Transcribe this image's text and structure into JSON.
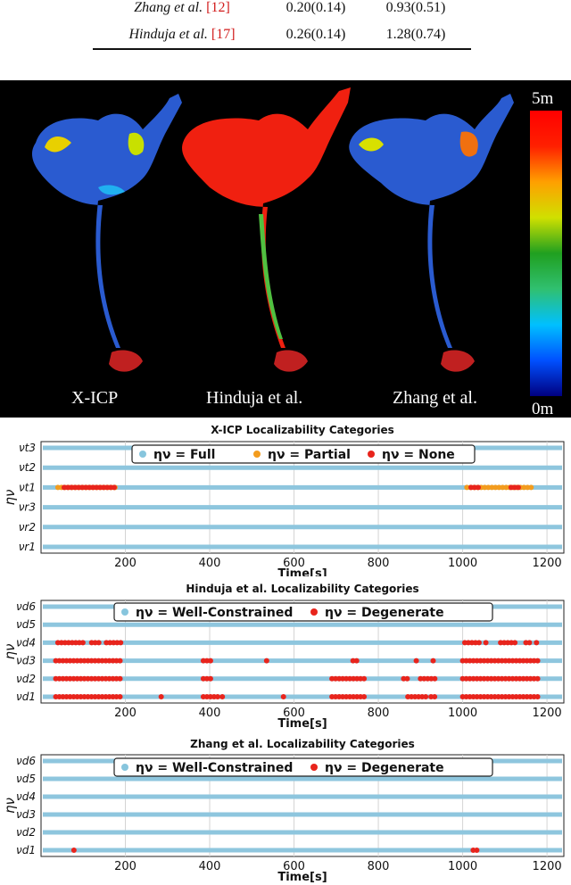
{
  "table": {
    "rows": [
      {
        "method": "Zhang",
        "etal": " et al. ",
        "ref": "[12]",
        "v1": "0.20(0.14)",
        "v2": "0.93(0.51)"
      },
      {
        "method": "Hinduja",
        "etal": " et al. ",
        "ref": "[17]",
        "v1": "0.26(0.14)",
        "v2": "1.28(0.74)"
      }
    ]
  },
  "heatmap": {
    "labels": [
      "X-ICP",
      "Hinduja et al.",
      "Zhang et al."
    ],
    "colorbar": {
      "max_label": "5m",
      "min_label": "0m",
      "colors": [
        "#000080",
        "#0050ff",
        "#00c0ff",
        "#30c070",
        "#20a020",
        "#d0e000",
        "#ffa000",
        "#ff2000",
        "#ff0000"
      ]
    }
  },
  "chart_data": [
    {
      "type": "scatter",
      "title": "X-ICP Localizability Categories",
      "xlabel": "Time[s]",
      "ylabel": "ην",
      "xlim": [
        0,
        1240
      ],
      "xticks": [
        200,
        400,
        600,
        800,
        1000,
        1200
      ],
      "categories": [
        "νr1",
        "νr2",
        "νr3",
        "νt1",
        "νt2",
        "νt3"
      ],
      "legend": [
        {
          "label": "ην = Full",
          "color": "#87c5dd"
        },
        {
          "label": "ην = Partial",
          "color": "#f39c1e"
        },
        {
          "label": "ην = None",
          "color": "#e8241c"
        }
      ],
      "points": [
        {
          "row": 3,
          "x0": 40,
          "x1": 180,
          "series": 1
        },
        {
          "row": 3,
          "x0": 55,
          "x1": 175,
          "series": 2
        },
        {
          "row": 3,
          "x0": 1010,
          "x1": 1165,
          "series": 1
        },
        {
          "row": 3,
          "x0": 1020,
          "x1": 1045,
          "series": 2
        },
        {
          "row": 3,
          "x0": 1115,
          "x1": 1135,
          "series": 2
        }
      ]
    },
    {
      "type": "scatter",
      "title": "Hinduja et al. Localizability Categories",
      "xlabel": "Time[s]",
      "ylabel": "ην",
      "xlim": [
        0,
        1240
      ],
      "xticks": [
        200,
        400,
        600,
        800,
        1000,
        1200
      ],
      "categories": [
        "νd1",
        "νd2",
        "νd3",
        "νd4",
        "νd5",
        "νd6"
      ],
      "legend": [
        {
          "label": "ην = Well-Constrained",
          "color": "#87c5dd"
        },
        {
          "label": "ην = Degenerate",
          "color": "#e8241c"
        }
      ],
      "points": [
        {
          "row": 0,
          "x0": 35,
          "x1": 190,
          "series": 1
        },
        {
          "row": 0,
          "x0": 285,
          "x1": 290,
          "series": 1
        },
        {
          "row": 0,
          "x0": 385,
          "x1": 425,
          "series": 1
        },
        {
          "row": 0,
          "x0": 430,
          "x1": 435,
          "series": 1
        },
        {
          "row": 0,
          "x0": 575,
          "x1": 580,
          "series": 1
        },
        {
          "row": 0,
          "x0": 690,
          "x1": 770,
          "series": 1
        },
        {
          "row": 0,
          "x0": 870,
          "x1": 915,
          "series": 1
        },
        {
          "row": 0,
          "x0": 925,
          "x1": 940,
          "series": 1
        },
        {
          "row": 0,
          "x0": 1000,
          "x1": 1180,
          "series": 1
        },
        {
          "row": 1,
          "x0": 35,
          "x1": 190,
          "series": 1
        },
        {
          "row": 1,
          "x0": 385,
          "x1": 410,
          "series": 1
        },
        {
          "row": 1,
          "x0": 690,
          "x1": 770,
          "series": 1
        },
        {
          "row": 1,
          "x0": 860,
          "x1": 870,
          "series": 1
        },
        {
          "row": 1,
          "x0": 900,
          "x1": 940,
          "series": 1
        },
        {
          "row": 1,
          "x0": 1000,
          "x1": 1180,
          "series": 1
        },
        {
          "row": 2,
          "x0": 35,
          "x1": 190,
          "series": 1
        },
        {
          "row": 2,
          "x0": 385,
          "x1": 410,
          "series": 1
        },
        {
          "row": 2,
          "x0": 535,
          "x1": 540,
          "series": 1
        },
        {
          "row": 2,
          "x0": 740,
          "x1": 755,
          "series": 1
        },
        {
          "row": 2,
          "x0": 890,
          "x1": 895,
          "series": 1
        },
        {
          "row": 2,
          "x0": 930,
          "x1": 935,
          "series": 1
        },
        {
          "row": 2,
          "x0": 1000,
          "x1": 1180,
          "series": 1
        },
        {
          "row": 3,
          "x0": 40,
          "x1": 100,
          "series": 1
        },
        {
          "row": 3,
          "x0": 120,
          "x1": 140,
          "series": 1
        },
        {
          "row": 3,
          "x0": 155,
          "x1": 190,
          "series": 1
        },
        {
          "row": 3,
          "x0": 1005,
          "x1": 1040,
          "series": 1
        },
        {
          "row": 3,
          "x0": 1055,
          "x1": 1060,
          "series": 1
        },
        {
          "row": 3,
          "x0": 1090,
          "x1": 1130,
          "series": 1
        },
        {
          "row": 3,
          "x0": 1150,
          "x1": 1160,
          "series": 1
        },
        {
          "row": 3,
          "x0": 1175,
          "x1": 1180,
          "series": 1
        }
      ]
    },
    {
      "type": "scatter",
      "title": "Zhang et al. Localizability Categories",
      "xlabel": "Time[s]",
      "ylabel": "ην",
      "xlim": [
        0,
        1240
      ],
      "xticks": [
        200,
        400,
        600,
        800,
        1000,
        1200
      ],
      "categories": [
        "νd1",
        "νd2",
        "νd3",
        "νd4",
        "νd5",
        "νd6"
      ],
      "legend": [
        {
          "label": "ην = Well-Constrained",
          "color": "#87c5dd"
        },
        {
          "label": "ην = Degenerate",
          "color": "#e8241c"
        }
      ],
      "points": [
        {
          "row": 0,
          "x0": 78,
          "x1": 82,
          "series": 1
        },
        {
          "row": 0,
          "x0": 1025,
          "x1": 1035,
          "series": 1
        }
      ]
    }
  ]
}
